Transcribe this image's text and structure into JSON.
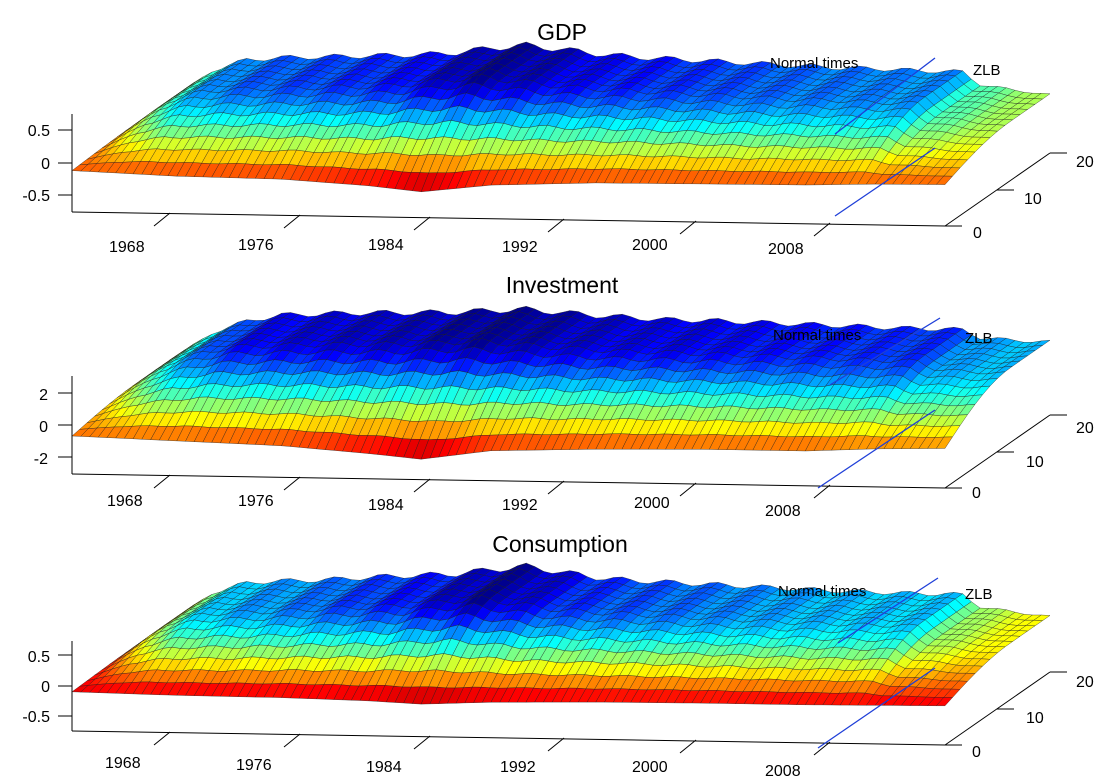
{
  "chart_data": [
    {
      "type": "surface",
      "title": "GDP",
      "x_ticks": [
        "1968",
        "1976",
        "1984",
        "1992",
        "2000",
        "2008"
      ],
      "y_ticks": [
        "0",
        "10",
        "20"
      ],
      "z_ticks": [
        "0.5",
        "0",
        "-0.5"
      ],
      "z_tick_values": [
        0.5,
        0,
        -0.5
      ],
      "zlim": [
        -0.5,
        0.5
      ],
      "x_range": [
        1964,
        2014
      ],
      "y_range": [
        0,
        20
      ],
      "annotations": [
        "Normal times",
        "ZLB"
      ],
      "divider_year": 2009,
      "z_base": -0.03,
      "peak_values": [
        [
          1964,
          0.0
        ],
        [
          1966,
          0.38
        ],
        [
          1968,
          0.56
        ],
        [
          1970,
          0.6
        ],
        [
          1972,
          0.62
        ],
        [
          1974,
          0.64
        ],
        [
          1976,
          0.66
        ],
        [
          1978,
          0.68
        ],
        [
          1980,
          0.72
        ],
        [
          1982,
          0.8
        ],
        [
          1984,
          0.85
        ],
        [
          1986,
          0.8
        ],
        [
          1988,
          0.74
        ],
        [
          1990,
          0.7
        ],
        [
          1992,
          0.68
        ],
        [
          1994,
          0.66
        ],
        [
          1996,
          0.64
        ],
        [
          1998,
          0.62
        ],
        [
          2000,
          0.6
        ],
        [
          2002,
          0.58
        ],
        [
          2004,
          0.58
        ],
        [
          2006,
          0.56
        ],
        [
          2008,
          0.55
        ],
        [
          2009,
          0.55
        ],
        [
          2010,
          0.36
        ],
        [
          2012,
          0.28
        ],
        [
          2014,
          0.22
        ]
      ],
      "trough_values": [
        [
          1964,
          -0.04
        ],
        [
          1970,
          -0.1
        ],
        [
          1976,
          -0.12
        ],
        [
          1981,
          -0.2
        ],
        [
          1984,
          -0.28
        ],
        [
          1988,
          -0.16
        ],
        [
          1994,
          -0.1
        ],
        [
          2000,
          -0.09
        ],
        [
          2006,
          -0.08
        ],
        [
          2010,
          -0.05
        ],
        [
          2014,
          -0.04
        ]
      ],
      "colors": {
        "divider_line": "#1f3fd8"
      }
    },
    {
      "type": "surface",
      "title": "Investment",
      "x_ticks": [
        "1968",
        "1976",
        "1984",
        "1992",
        "2000",
        "2008"
      ],
      "y_ticks": [
        "0",
        "10",
        "20"
      ],
      "z_ticks": [
        "2",
        "0",
        "-2"
      ],
      "z_tick_values": [
        2,
        0,
        -2
      ],
      "zlim": [
        -2,
        2
      ],
      "x_range": [
        1964,
        2014
      ],
      "y_range": [
        0,
        20
      ],
      "annotations": [
        "Normal times",
        "ZLB"
      ],
      "divider_year": 2009,
      "z_base": -0.2,
      "peak_values": [
        [
          1964,
          0.0
        ],
        [
          1966,
          1.4
        ],
        [
          1968,
          2.2
        ],
        [
          1970,
          2.6
        ],
        [
          1972,
          2.7
        ],
        [
          1974,
          2.8
        ],
        [
          1976,
          2.85
        ],
        [
          1978,
          2.9
        ],
        [
          1980,
          2.95
        ],
        [
          1982,
          3.1
        ],
        [
          1984,
          3.2
        ],
        [
          1986,
          3.05
        ],
        [
          1988,
          2.9
        ],
        [
          1990,
          2.8
        ],
        [
          1992,
          2.7
        ],
        [
          1994,
          2.7
        ],
        [
          1996,
          2.65
        ],
        [
          1998,
          2.6
        ],
        [
          2000,
          2.55
        ],
        [
          2002,
          2.5
        ],
        [
          2004,
          2.45
        ],
        [
          2006,
          2.4
        ],
        [
          2008,
          2.4
        ],
        [
          2009,
          2.35
        ],
        [
          2010,
          1.9
        ],
        [
          2012,
          1.75
        ],
        [
          2014,
          1.7
        ]
      ],
      "trough_values": [
        [
          1964,
          -0.5
        ],
        [
          1970,
          -0.7
        ],
        [
          1976,
          -0.9
        ],
        [
          1981,
          -1.3
        ],
        [
          1984,
          -1.6
        ],
        [
          1988,
          -1.0
        ],
        [
          1994,
          -0.8
        ],
        [
          2000,
          -0.7
        ],
        [
          2006,
          -0.7
        ],
        [
          2010,
          -0.5
        ],
        [
          2014,
          -0.4
        ]
      ],
      "colors": {
        "divider_line": "#1f3fd8"
      }
    },
    {
      "type": "surface",
      "title": "Consumption",
      "x_ticks": [
        "1968",
        "1976",
        "1984",
        "1992",
        "2000",
        "2008"
      ],
      "y_ticks": [
        "0",
        "10",
        "20"
      ],
      "z_ticks": [
        "0.5",
        "0",
        "-0.5"
      ],
      "z_tick_values": [
        0.5,
        0,
        -0.5
      ],
      "zlim": [
        -0.5,
        0.5
      ],
      "x_range": [
        1964,
        2014
      ],
      "y_range": [
        0,
        20
      ],
      "annotations": [
        "Normal times",
        "ZLB"
      ],
      "divider_year": 2009,
      "z_base": -0.02,
      "peak_values": [
        [
          1964,
          0.0
        ],
        [
          1966,
          0.4
        ],
        [
          1968,
          0.58
        ],
        [
          1970,
          0.62
        ],
        [
          1972,
          0.64
        ],
        [
          1974,
          0.68
        ],
        [
          1976,
          0.72
        ],
        [
          1978,
          0.75
        ],
        [
          1980,
          0.78
        ],
        [
          1982,
          0.86
        ],
        [
          1984,
          0.92
        ],
        [
          1986,
          0.84
        ],
        [
          1988,
          0.76
        ],
        [
          1990,
          0.72
        ],
        [
          1992,
          0.7
        ],
        [
          1994,
          0.68
        ],
        [
          1996,
          0.66
        ],
        [
          1998,
          0.64
        ],
        [
          2000,
          0.62
        ],
        [
          2002,
          0.6
        ],
        [
          2004,
          0.59
        ],
        [
          2006,
          0.58
        ],
        [
          2008,
          0.58
        ],
        [
          2009,
          0.57
        ],
        [
          2010,
          0.38
        ],
        [
          2012,
          0.3
        ],
        [
          2014,
          0.24
        ]
      ],
      "trough_values": [
        [
          1964,
          -0.03
        ],
        [
          1970,
          -0.06
        ],
        [
          1976,
          -0.07
        ],
        [
          1981,
          -0.1
        ],
        [
          1984,
          -0.14
        ],
        [
          1988,
          -0.09
        ],
        [
          1994,
          -0.06
        ],
        [
          2000,
          -0.05
        ],
        [
          2006,
          -0.05
        ],
        [
          2010,
          -0.04
        ],
        [
          2014,
          -0.03
        ]
      ],
      "colors": {
        "divider_line": "#1f3fd8"
      }
    }
  ],
  "colormap": [
    "#00008f",
    "#0000ff",
    "#0080ff",
    "#00ffff",
    "#80ff80",
    "#ffff00",
    "#ff8000",
    "#ff0000",
    "#800000"
  ]
}
